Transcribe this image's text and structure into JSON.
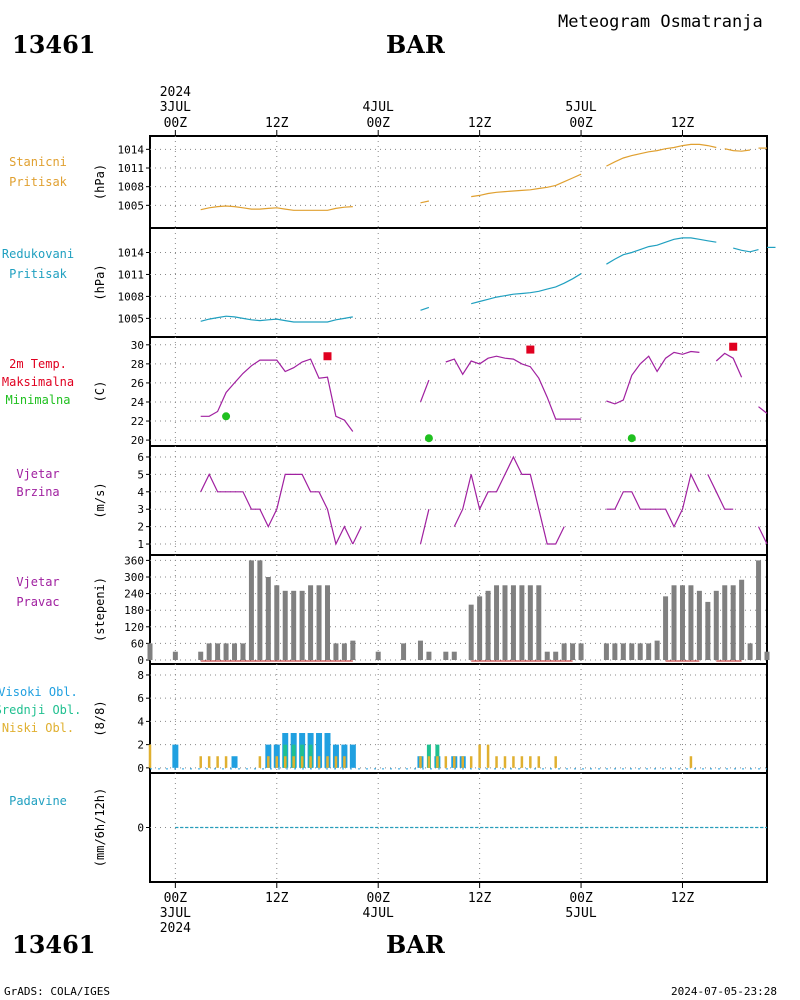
{
  "header": {
    "station_id": "13461",
    "station_name": "BAR",
    "title": "Meteogram Osmatranja"
  },
  "time_axis": {
    "top_labels": [
      {
        "hour": "00Z",
        "date": "3JUL",
        "year": "2024",
        "t": 0
      },
      {
        "hour": "12Z",
        "date": "",
        "year": "",
        "t": 12
      },
      {
        "hour": "00Z",
        "date": "4JUL",
        "year": "",
        "t": 24
      },
      {
        "hour": "12Z",
        "date": "",
        "year": "",
        "t": 36
      },
      {
        "hour": "00Z",
        "date": "5JUL",
        "year": "",
        "t": 48
      },
      {
        "hour": "12Z",
        "date": "",
        "year": "",
        "t": 60
      }
    ],
    "bottom_labels": [
      {
        "hour": "00Z",
        "date": "3JUL",
        "year": "2024",
        "t": 0
      },
      {
        "hour": "12Z",
        "date": "",
        "year": "",
        "t": 12
      },
      {
        "hour": "00Z",
        "date": "4JUL",
        "year": "",
        "t": 24
      },
      {
        "hour": "12Z",
        "date": "",
        "year": "",
        "t": 36
      },
      {
        "hour": "00Z",
        "date": "5JUL",
        "year": "",
        "t": 48
      },
      {
        "hour": "12Z",
        "date": "",
        "year": "",
        "t": 60
      }
    ],
    "range_hours": [
      -3,
      70
    ]
  },
  "footer": {
    "left": "GrADS: COLA/IGES",
    "right": "2024-07-05-23:28"
  },
  "colors": {
    "pressure": "#e0a030",
    "reduced": "#20a0c0",
    "tmax": "#e00020",
    "tmin": "#20c020",
    "wind": "#a020a0",
    "bars": "#808080",
    "high_cloud": "#20a0e0",
    "mid_cloud": "#20c090",
    "low_cloud": "#e0b030",
    "precip": "#20a0c0"
  },
  "chart_data": [
    {
      "type": "line",
      "id": "station_pressure",
      "labels": [
        "Stanicni",
        "Pritisak"
      ],
      "ylabel": "(hPa)",
      "ylim": [
        1002,
        1015.5
      ],
      "yticks": [
        1005,
        1008,
        1011,
        1014
      ],
      "series": [
        {
          "x": [
            3,
            4,
            5,
            6,
            7,
            8,
            9,
            10,
            11,
            12,
            13,
            14,
            15,
            16,
            17,
            18,
            19,
            20,
            21
          ],
          "y": [
            1004.3,
            1004.6,
            1004.8,
            1004.9,
            1004.8,
            1004.6,
            1004.4,
            1004.4,
            1004.5,
            1004.6,
            1004.4,
            1004.2,
            1004.2,
            1004.2,
            1004.2,
            1004.2,
            1004.5,
            1004.7,
            1004.8
          ]
        },
        {
          "x": [
            29,
            30
          ],
          "y": [
            1005.4,
            1005.7
          ]
        },
        {
          "x": [
            35,
            36,
            37,
            38,
            39,
            40,
            41,
            42,
            43,
            44,
            45,
            46,
            47,
            48
          ],
          "y": [
            1006.4,
            1006.6,
            1006.9,
            1007.1,
            1007.2,
            1007.3,
            1007.4,
            1007.5,
            1007.7,
            1007.9,
            1008.2,
            1008.8,
            1009.4,
            1010.0
          ]
        },
        {
          "x": [
            51,
            52,
            53,
            54,
            55,
            56,
            57,
            58,
            59,
            60,
            61,
            62,
            63,
            64
          ],
          "y": [
            1011.3,
            1012.0,
            1012.6,
            1013.0,
            1013.3,
            1013.6,
            1013.8,
            1014.1,
            1014.3,
            1014.6,
            1014.8,
            1014.8,
            1014.6,
            1014.3
          ]
        },
        {
          "x": [
            65,
            66,
            67,
            68
          ],
          "y": [
            1014.1,
            1013.8,
            1013.7,
            1013.9
          ]
        },
        {
          "x": [
            69,
            70
          ],
          "y": [
            1014.2,
            1014.2
          ]
        }
      ]
    },
    {
      "type": "line",
      "id": "reduced_pressure",
      "labels": [
        "Redukovani",
        "Pritisak"
      ],
      "ylabel": "(hPa)",
      "ylim": [
        1003,
        1016.8
      ],
      "yticks": [
        1005,
        1008,
        1011,
        1014
      ],
      "series": [
        {
          "x": [
            3,
            4,
            5,
            6,
            7,
            8,
            9,
            10,
            11,
            12,
            13,
            14,
            15,
            16,
            17,
            18,
            19,
            20,
            21
          ],
          "y": [
            1004.6,
            1004.9,
            1005.1,
            1005.3,
            1005.2,
            1005.0,
            1004.8,
            1004.7,
            1004.8,
            1004.9,
            1004.7,
            1004.5,
            1004.5,
            1004.5,
            1004.5,
            1004.5,
            1004.8,
            1005.0,
            1005.2
          ]
        },
        {
          "x": [
            29,
            30
          ],
          "y": [
            1006.1,
            1006.5
          ]
        },
        {
          "x": [
            35,
            36,
            37,
            38,
            39,
            40,
            41,
            42,
            43,
            44,
            45,
            46,
            47,
            48
          ],
          "y": [
            1007.0,
            1007.3,
            1007.6,
            1007.9,
            1008.1,
            1008.3,
            1008.4,
            1008.5,
            1008.7,
            1009.0,
            1009.3,
            1009.8,
            1010.4,
            1011.1
          ]
        },
        {
          "x": [
            51,
            52,
            53,
            54,
            55,
            56,
            57,
            58,
            59,
            60,
            61,
            62,
            63,
            64
          ],
          "y": [
            1012.4,
            1013.1,
            1013.7,
            1014.0,
            1014.4,
            1014.8,
            1015.0,
            1015.4,
            1015.8,
            1016.0,
            1016.0,
            1015.8,
            1015.6,
            1015.4
          ]
        },
        {
          "x": [
            66,
            67,
            68,
            69
          ],
          "y": [
            1014.6,
            1014.3,
            1014.1,
            1014.4
          ]
        },
        {
          "x": [
            70,
            71
          ],
          "y": [
            1014.7,
            1014.7
          ]
        }
      ]
    },
    {
      "type": "line",
      "id": "temperature",
      "labels": [
        "2m Temp.",
        "Maksimalna",
        "Minimalna"
      ],
      "ylabel": "(C)",
      "ylim": [
        19.8,
        30.4
      ],
      "yticks": [
        20,
        22,
        24,
        26,
        28,
        30
      ],
      "series": [
        {
          "name": "2m Temp.",
          "x": [
            3,
            4,
            5,
            6,
            7,
            8,
            9,
            10,
            11,
            12,
            13,
            14,
            15,
            16,
            17,
            18,
            19,
            20,
            21
          ],
          "y": [
            22.5,
            22.5,
            23.0,
            25.0,
            26.0,
            27.0,
            27.8,
            28.4,
            28.4,
            28.4,
            27.2,
            27.6,
            28.2,
            28.5,
            26.5,
            26.6,
            22.5,
            22.1,
            20.9
          ]
        },
        {
          "name": "2m Temp.",
          "x": [
            29,
            30
          ],
          "y": [
            24.0,
            26.3
          ]
        },
        {
          "name": "2m Temp.",
          "x": [
            32,
            33,
            34,
            35,
            36,
            37,
            38,
            39,
            40,
            41,
            42,
            43,
            44,
            45,
            46,
            47,
            48
          ],
          "y": [
            28.2,
            28.5,
            26.9,
            28.3,
            28.0,
            28.6,
            28.8,
            28.6,
            28.5,
            28.0,
            27.7,
            26.5,
            24.5,
            22.2,
            22.2,
            22.2,
            22.2
          ]
        },
        {
          "name": "2m Temp.",
          "x": [
            51,
            52,
            53,
            54,
            55,
            56,
            57,
            58,
            59,
            60,
            61,
            62
          ],
          "y": [
            24.1,
            23.8,
            24.2,
            26.8,
            28.0,
            28.8,
            27.2,
            28.6,
            29.2,
            29.0,
            29.3,
            29.2
          ]
        },
        {
          "name": "2m Temp.",
          "x": [
            64,
            65,
            66,
            67
          ],
          "y": [
            28.3,
            29.1,
            28.6,
            26.6
          ]
        },
        {
          "name": "2m Temp.",
          "x": [
            69,
            70
          ],
          "y": [
            23.5,
            22.8
          ]
        },
        {
          "name": "Maksimalna",
          "type": "marker",
          "x": [
            18,
            42,
            66
          ],
          "y": [
            28.8,
            29.5,
            29.8
          ]
        },
        {
          "name": "Minimalna",
          "type": "marker",
          "x": [
            6,
            30,
            54
          ],
          "y": [
            22.5,
            20.2,
            20.2
          ]
        }
      ]
    },
    {
      "type": "line",
      "id": "wind_speed",
      "labels": [
        "Vjetar",
        "Brzina"
      ],
      "ylabel": "(m/s)",
      "ylim": [
        0.6,
        6.4
      ],
      "yticks": [
        1,
        2,
        3,
        4,
        5,
        6
      ],
      "series": [
        {
          "x": [
            3,
            4,
            5,
            6,
            7,
            8,
            9,
            10,
            11,
            12,
            13,
            14,
            15,
            16,
            17,
            18,
            19,
            20,
            21
          ],
          "y": [
            4,
            5,
            4,
            4,
            4,
            4,
            3,
            3,
            2,
            3,
            5,
            5,
            5,
            4,
            4,
            3,
            1,
            2,
            1
          ]
        },
        {
          "x": [
            21,
            22
          ],
          "y": [
            1,
            2
          ]
        },
        {
          "x": [
            29,
            30
          ],
          "y": [
            1,
            3
          ]
        },
        {
          "x": [
            33,
            34,
            35,
            36,
            37,
            38,
            39,
            40,
            41,
            42,
            43,
            44,
            45,
            46
          ],
          "y": [
            2,
            3,
            5,
            3,
            4,
            4,
            5,
            6,
            5,
            5,
            3,
            1,
            1,
            2
          ]
        },
        {
          "x": [
            51,
            52,
            53,
            54,
            55,
            56,
            57,
            58,
            59,
            60,
            61,
            62
          ],
          "y": [
            3,
            3,
            4,
            4,
            3,
            3,
            3,
            3,
            2,
            3,
            5,
            4
          ]
        },
        {
          "x": [
            63,
            64,
            65,
            66
          ],
          "y": [
            5,
            4,
            3,
            3
          ]
        },
        {
          "x": [
            69,
            70
          ],
          "y": [
            2,
            1
          ]
        }
      ]
    },
    {
      "type": "bar",
      "id": "wind_direction",
      "labels": [
        "Vjetar",
        "Pravac"
      ],
      "ylabel": "(stepeni)",
      "ylim": [
        0,
        365
      ],
      "yticks": [
        0,
        60,
        120,
        180,
        240,
        300,
        360
      ],
      "x": [
        -3,
        0,
        3,
        4,
        5,
        6,
        7,
        8,
        9,
        10,
        11,
        12,
        13,
        14,
        15,
        16,
        17,
        18,
        19,
        20,
        21,
        24,
        27,
        29,
        30,
        32,
        33,
        35,
        36,
        37,
        38,
        39,
        40,
        41,
        42,
        43,
        44,
        45,
        46,
        47,
        48,
        51,
        52,
        53,
        54,
        55,
        56,
        57,
        58,
        59,
        60,
        61,
        62,
        63,
        64,
        65,
        66,
        67,
        68,
        69,
        70
      ],
      "values": [
        60,
        30,
        30,
        60,
        60,
        60,
        60,
        60,
        360,
        360,
        300,
        270,
        250,
        250,
        250,
        270,
        270,
        270,
        60,
        60,
        70,
        30,
        60,
        70,
        30,
        30,
        30,
        200,
        230,
        250,
        270,
        270,
        270,
        270,
        270,
        270,
        30,
        30,
        60,
        60,
        60,
        60,
        60,
        60,
        60,
        60,
        60,
        70,
        230,
        270,
        270,
        270,
        250,
        210,
        250,
        270,
        270,
        290,
        60,
        360,
        30
      ]
    },
    {
      "type": "bar",
      "id": "cloud_cover",
      "labels": [
        "Visoki Obl.",
        "Srednji Obl.",
        "Niski Obl."
      ],
      "ylabel": "(8/8)",
      "ylim": [
        -0.1,
        8.6
      ],
      "yticks": [
        0,
        2,
        4,
        6,
        8
      ],
      "series": [
        {
          "name": "Visoki Obl.",
          "x": [
            0,
            7,
            11,
            12,
            13,
            14,
            15,
            16,
            17,
            18,
            19,
            20,
            21,
            29,
            31,
            33,
            34
          ],
          "values": [
            2,
            1,
            2,
            2,
            3,
            3,
            3,
            3,
            3,
            3,
            2,
            2,
            2,
            1,
            1,
            1,
            1
          ]
        },
        {
          "name": "Srednji Obl.",
          "x": [
            13,
            14,
            15,
            16,
            30,
            31
          ],
          "values": [
            2,
            2,
            2,
            2,
            2,
            2
          ]
        },
        {
          "name": "Niski Obl.",
          "x": [
            -3,
            3,
            4,
            5,
            6,
            10,
            11,
            12,
            13,
            14,
            15,
            16,
            17,
            18,
            19,
            20,
            29,
            30,
            31,
            32,
            33,
            34,
            35,
            36,
            37,
            38,
            39,
            40,
            41,
            42,
            43,
            45,
            61
          ],
          "values": [
            2,
            1,
            1,
            1,
            1,
            1,
            1,
            1,
            1,
            1,
            1,
            1,
            1,
            1,
            1,
            1,
            1,
            1,
            1,
            1,
            1,
            1,
            1,
            2,
            2,
            1,
            1,
            1,
            1,
            1,
            1,
            1,
            1
          ]
        }
      ]
    },
    {
      "type": "line",
      "id": "precipitation",
      "labels": [
        "Padavine"
      ],
      "ylabel": "(mm/6h/12h)",
      "ylim": [
        -1,
        1
      ],
      "yticks": [
        0
      ],
      "series": [
        {
          "x": [
            0,
            3,
            4,
            5,
            6,
            7,
            8,
            9,
            10,
            11,
            12,
            13,
            14,
            15,
            16,
            17,
            18,
            19,
            20,
            21,
            29,
            30,
            31,
            32,
            33,
            34,
            35,
            36,
            37,
            38,
            39,
            40,
            41,
            42,
            43,
            44,
            45,
            46,
            47,
            48,
            51,
            52,
            53,
            54,
            55,
            56,
            57,
            58,
            59,
            60,
            61,
            62,
            63,
            64,
            65,
            66,
            67,
            68,
            69,
            70
          ],
          "y": [
            0,
            0,
            0,
            0,
            0,
            0,
            0,
            0,
            0,
            0,
            0,
            0,
            0,
            0,
            0,
            0,
            0,
            0,
            0,
            0,
            0,
            0,
            0,
            0,
            0,
            0,
            0,
            0,
            0,
            0,
            0,
            0,
            0,
            0,
            0,
            0,
            0,
            0,
            0,
            0,
            0,
            0,
            0,
            0,
            0,
            0,
            0,
            0,
            0,
            0,
            0,
            0,
            0,
            0,
            0,
            0,
            0,
            0,
            0,
            0
          ]
        }
      ]
    }
  ]
}
